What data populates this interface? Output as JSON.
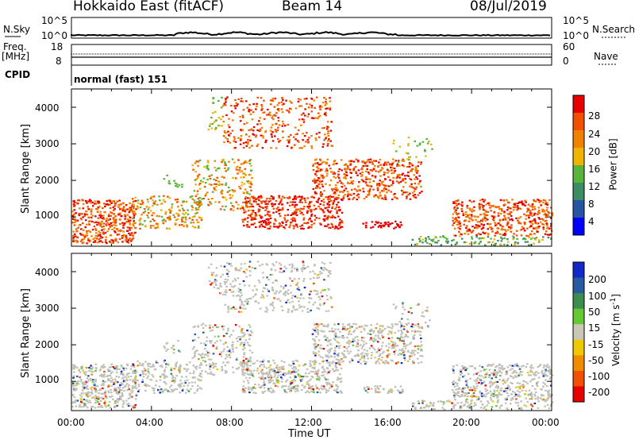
{
  "header": {
    "station": "Hokkaido East (fitACF)",
    "beam": "Beam 14",
    "date": "08/Jul/2019"
  },
  "strip_labels": {
    "nsky": "N.Sky",
    "freq": "Freq.",
    "freq_unit": "[MHz]",
    "cpid": "CPID",
    "nsearch": "N.Search",
    "nave": "Nave",
    "cpid_value": "normal (fast) 151"
  },
  "strip_ticks": {
    "noise_left": [
      "10^5",
      "10^0"
    ],
    "noise_right": [
      "10^5",
      "10^0"
    ],
    "freq_left": [
      "18",
      "8"
    ],
    "nave_right": [
      "60",
      "0"
    ]
  },
  "colors": {
    "power": [
      "#0000ff",
      "#2855a0",
      "#3c8c64",
      "#5ab43c",
      "#f0b400",
      "#f08200",
      "#f05000",
      "#e60000"
    ],
    "velocity": [
      "#1428c8",
      "#285aa0",
      "#3c8c50",
      "#64c832",
      "#c8c8b4",
      "#f0c800",
      "#f08c00",
      "#f05000",
      "#e60000"
    ],
    "scatter_grey": "#c0c0b8"
  },
  "chart_data": [
    {
      "type": "heatmap",
      "name": "power",
      "ylabel": "Slant Range [km]",
      "xlabel": "Time UT",
      "x_ticks": [
        "00:00",
        "04:00",
        "08:00",
        "12:00",
        "16:00",
        "20:00",
        "00:00"
      ],
      "y_ticks": [
        "1000",
        "2000",
        "3000",
        "4000"
      ],
      "ylim": [
        200,
        4500
      ],
      "colorbar": {
        "label": "Power [dB]",
        "ticks": [
          "28",
          "24",
          "20",
          "16",
          "12",
          "8",
          "4"
        ],
        "range": [
          0,
          30
        ]
      }
    },
    {
      "type": "heatmap",
      "name": "velocity",
      "ylabel": "Slant Range [km]",
      "xlabel": "Time UT",
      "x_ticks": [
        "00:00",
        "04:00",
        "08:00",
        "12:00",
        "16:00",
        "20:00",
        "00:00"
      ],
      "y_ticks": [
        "1000",
        "2000",
        "3000",
        "4000"
      ],
      "ylim": [
        200,
        4500
      ],
      "colorbar": {
        "label": "Velocity [m s",
        "label_sup": "-1",
        "label_end": "]",
        "ticks": [
          "200",
          "100",
          "50",
          "15",
          "-15",
          "-50",
          "-100",
          "-200"
        ],
        "range": [
          -250,
          250
        ]
      }
    }
  ],
  "xaxis_label": "Time UT"
}
